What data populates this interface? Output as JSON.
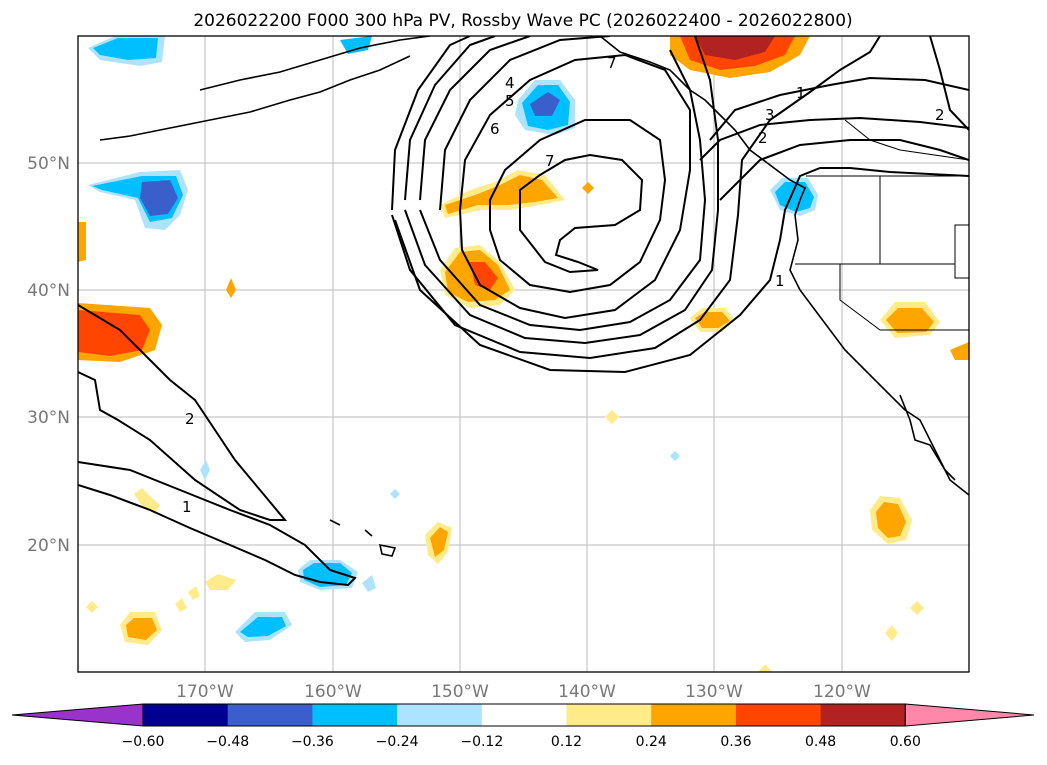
{
  "title": "2026022200 F000 300 hPa PV, Rossby Wave PC (2026022400 - 2026022800)",
  "lat_labels": [
    "50°N",
    "40°N",
    "30°N",
    "20°N"
  ],
  "lon_labels": [
    "170°W",
    "160°W",
    "150°W",
    "140°W",
    "130°W",
    "120°W"
  ],
  "contour_labels": [
    "1",
    "2",
    "3",
    "4",
    "5",
    "6",
    "7",
    "1",
    "2",
    "7",
    "1",
    "2"
  ],
  "colorbar": {
    "ticks": [
      "−0.60",
      "−0.48",
      "−0.36",
      "−0.24",
      "−0.12",
      "0.12",
      "0.24",
      "0.36",
      "0.48",
      "0.60"
    ],
    "colors": [
      "#9933cc",
      "#000090",
      "#3a5fcd",
      "#00bfff",
      "#aee3ff",
      "#ffffff",
      "#ffeb8a",
      "#ffa500",
      "#ff4500",
      "#b22222",
      "#ff88aa"
    ]
  },
  "map": {
    "lat_range": [
      10,
      60
    ],
    "lon_range": [
      -180,
      -110
    ],
    "grid": true
  }
}
